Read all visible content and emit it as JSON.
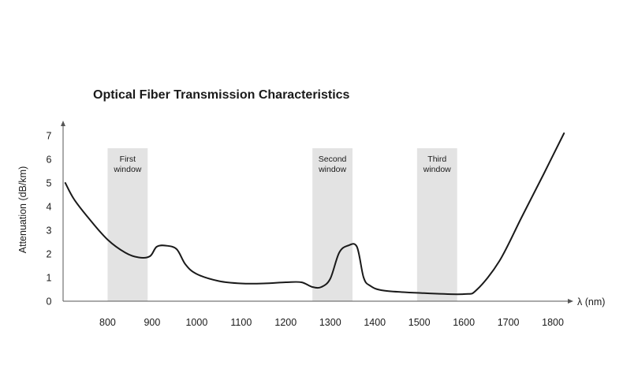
{
  "chart_data": {
    "type": "line",
    "title": "Optical Fiber Transmission Characteristics",
    "xlabel": "λ (nm)",
    "ylabel": "Attenuation (dB/km)",
    "xlim": [
      700,
      1830
    ],
    "ylim": [
      0,
      7.5
    ],
    "x_ticks": [
      800,
      900,
      1000,
      1100,
      1200,
      1300,
      1400,
      1500,
      1600,
      1700,
      1800
    ],
    "y_ticks": [
      0,
      1,
      2,
      3,
      4,
      5,
      6,
      7
    ],
    "grid": false,
    "legend": "none",
    "line_color": "#1a1a1a",
    "band_color": "#e3e3e3",
    "windows": [
      {
        "lines": [
          "First",
          "window"
        ],
        "x_start": 800,
        "x_end": 890
      },
      {
        "lines": [
          "Second",
          "window"
        ],
        "x_start": 1260,
        "x_end": 1350
      },
      {
        "lines": [
          "Third",
          "window"
        ],
        "x_start": 1495,
        "x_end": 1585
      }
    ],
    "series": [
      {
        "x": [
          705,
          725,
          760,
          800,
          840,
          870,
          895,
          910,
          930,
          955,
          975,
          1000,
          1050,
          1100,
          1150,
          1200,
          1235,
          1260,
          1280,
          1300,
          1320,
          1340,
          1360,
          1375,
          1390,
          1420,
          1500,
          1600,
          1630,
          1680,
          1730,
          1780,
          1825
        ],
        "y": [
          5.0,
          4.3,
          3.45,
          2.6,
          2.05,
          1.85,
          1.9,
          2.3,
          2.35,
          2.2,
          1.55,
          1.15,
          0.85,
          0.75,
          0.75,
          0.8,
          0.8,
          0.6,
          0.6,
          0.95,
          2.05,
          2.35,
          2.3,
          1.0,
          0.65,
          0.45,
          0.35,
          0.3,
          0.5,
          1.7,
          3.55,
          5.4,
          7.1
        ]
      }
    ]
  }
}
